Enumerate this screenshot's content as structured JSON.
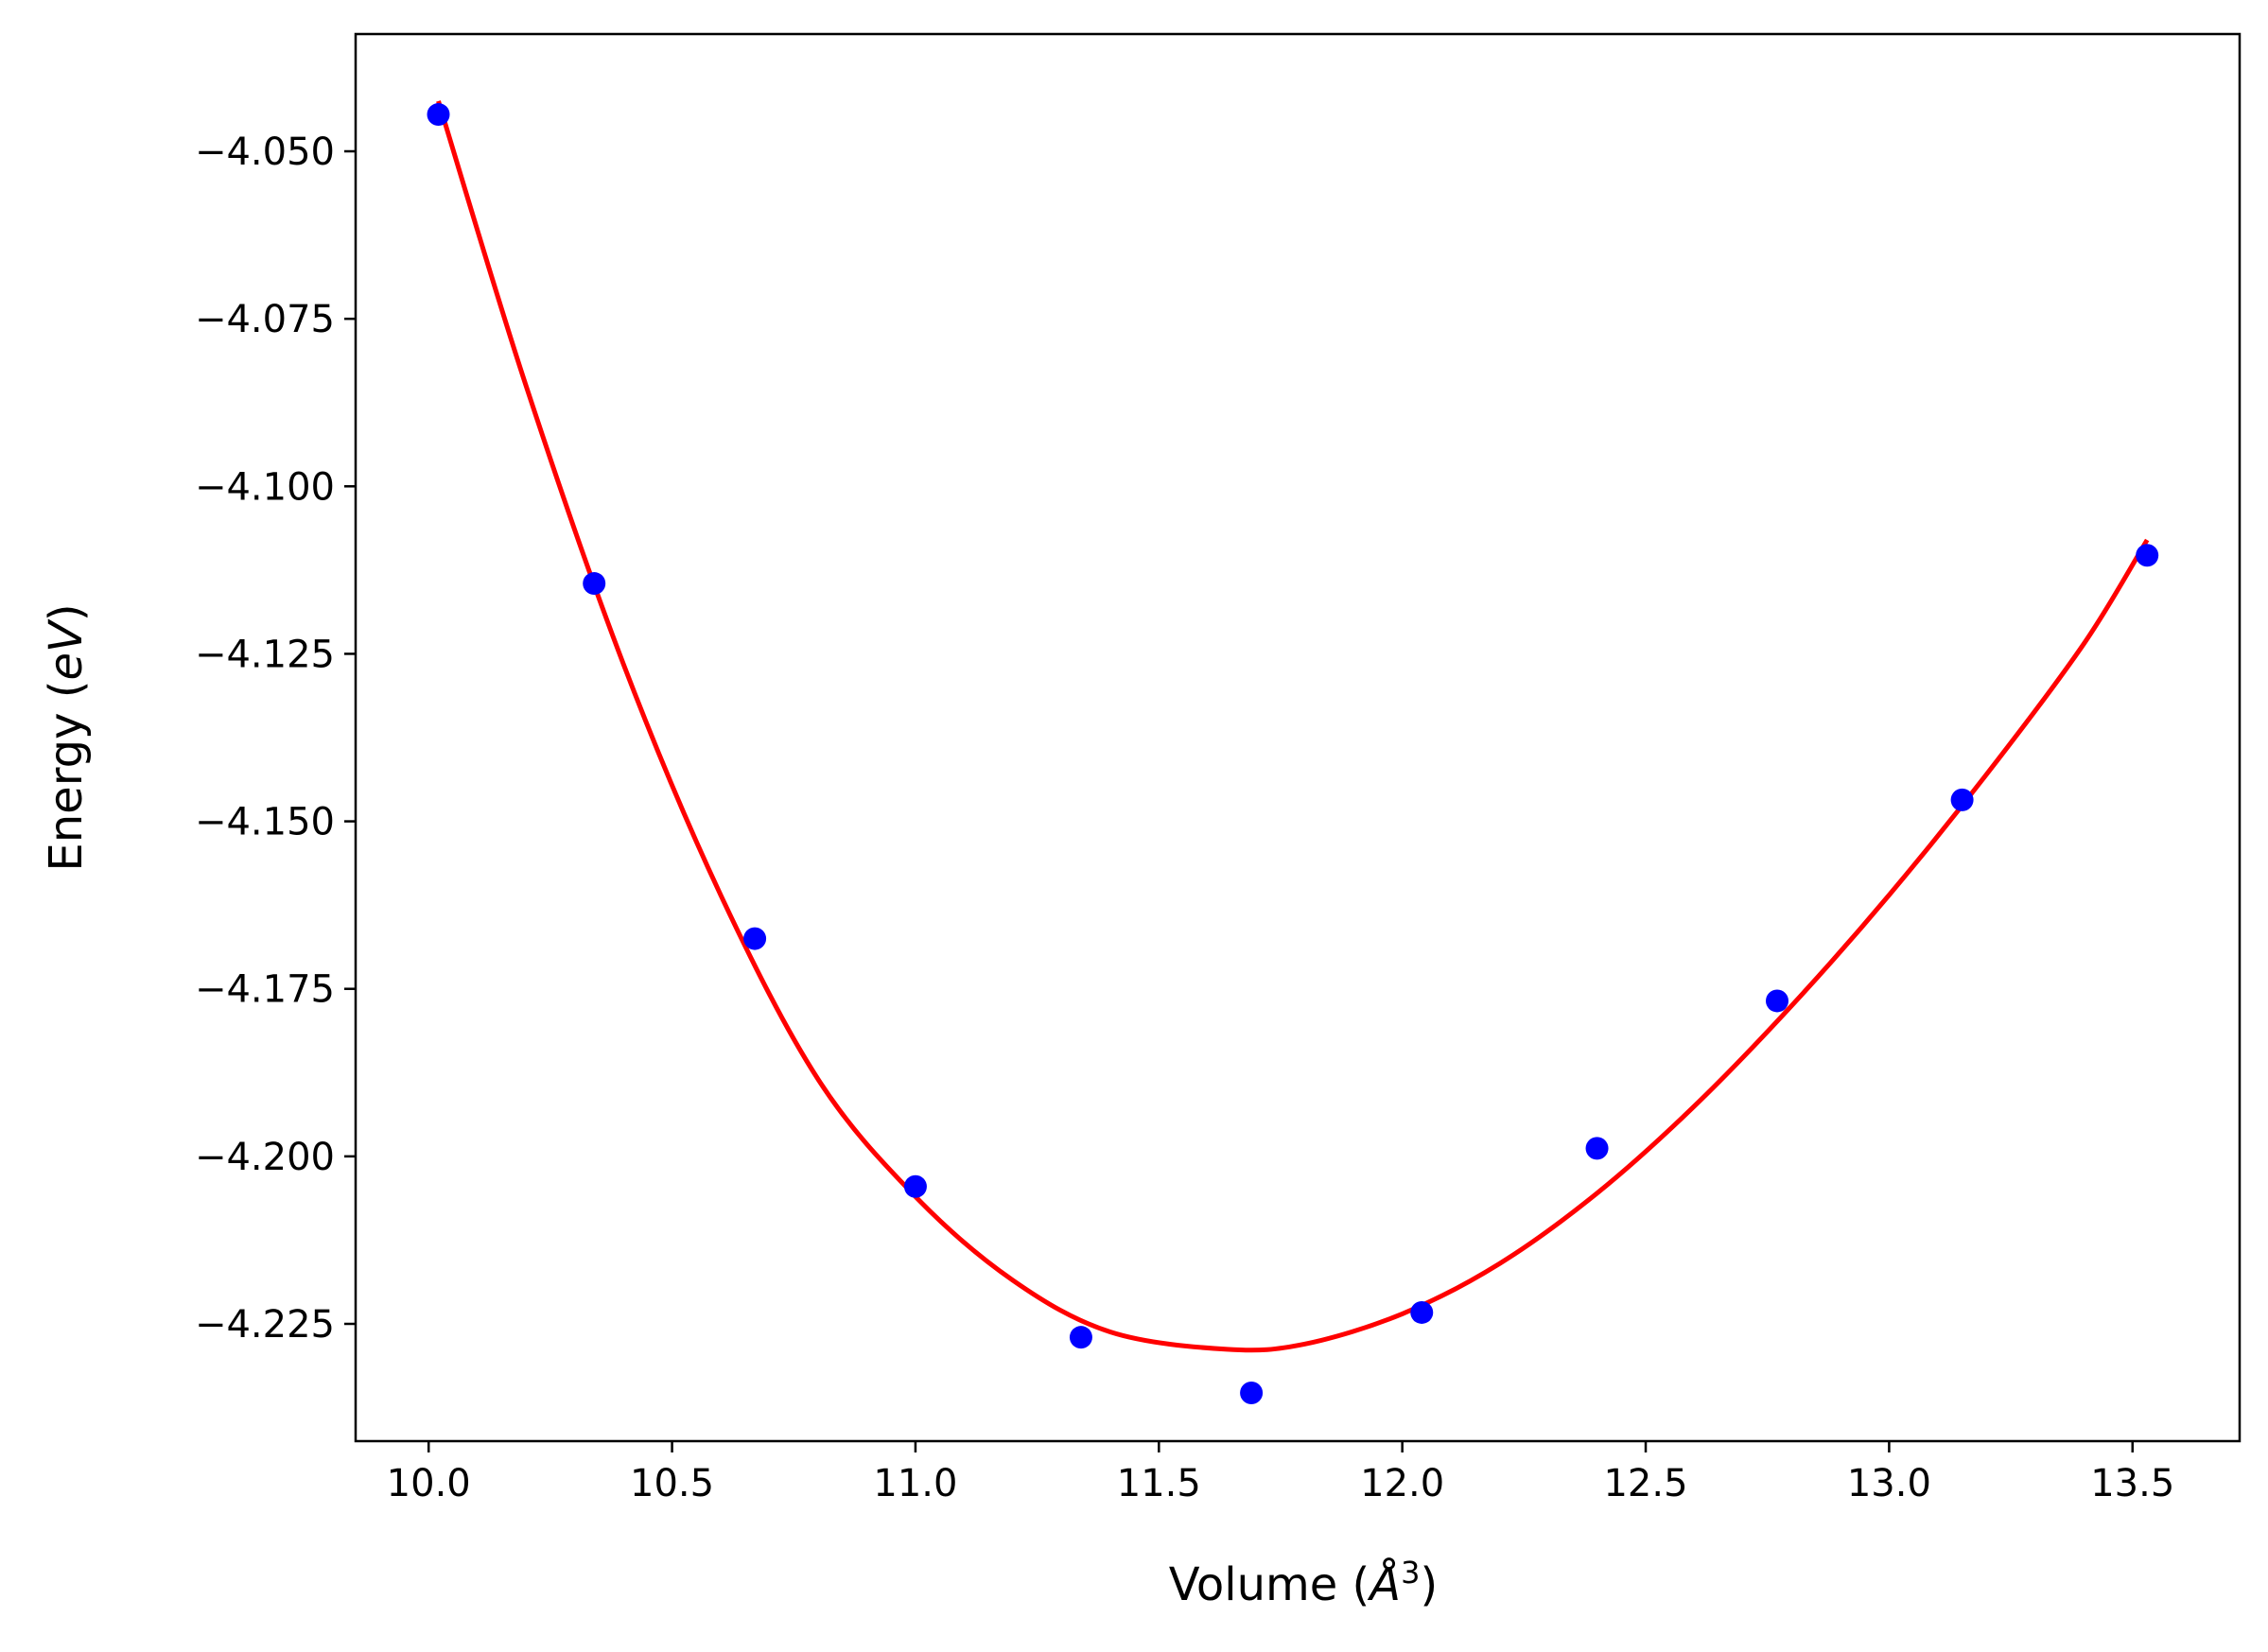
{
  "chart_data": {
    "type": "scatter",
    "title": "",
    "xlabel": {
      "prefix": "Volume (",
      "symbol": "Å",
      "exponent": "3",
      "suffix": ")"
    },
    "ylabel": {
      "prefix": "Energy (",
      "unit": "eV",
      "suffix": ")"
    },
    "xlim": [
      9.85,
      13.72
    ],
    "ylim": [
      -4.2425,
      -4.0325
    ],
    "xticks": [
      10.0,
      10.5,
      11.0,
      11.5,
      12.0,
      12.5,
      13.0,
      13.5
    ],
    "xtick_labels": [
      "10.0",
      "10.5",
      "11.0",
      "11.5",
      "12.0",
      "12.5",
      "13.0",
      "13.5"
    ],
    "yticks": [
      -4.05,
      -4.075,
      -4.1,
      -4.125,
      -4.15,
      -4.175,
      -4.2,
      -4.225
    ],
    "ytick_labels": [
      "−4.050",
      "−4.075",
      "−4.100",
      "−4.125",
      "−4.150",
      "−4.175",
      "−4.200",
      "−4.225"
    ],
    "grid": false,
    "series": [
      {
        "kind": "points",
        "color": "#0000ff",
        "x": [
          10.02,
          10.34,
          10.67,
          11.0,
          11.34,
          11.69,
          12.04,
          12.4,
          12.77,
          13.15,
          13.53
        ],
        "y": [
          -4.0445,
          -4.1145,
          -4.1675,
          -4.2045,
          -4.227,
          -4.2353,
          -4.2233,
          -4.1988,
          -4.1768,
          -4.1468,
          -4.1103
        ]
      },
      {
        "kind": "fit-line",
        "color": "#ff0000",
        "x": [
          10.02,
          10.2,
          10.4,
          10.6,
          10.8,
          11.0,
          11.2,
          11.4,
          11.64,
          11.8,
          12.0,
          12.2,
          12.4,
          12.6,
          12.8,
          13.0,
          13.2,
          13.4,
          13.53
        ],
        "y": [
          -4.0425,
          -4.085,
          -4.1265,
          -4.161,
          -4.1885,
          -4.206,
          -4.2185,
          -4.2262,
          -4.2288,
          -4.228,
          -4.2235,
          -4.216,
          -4.2055,
          -4.1925,
          -4.1775,
          -4.161,
          -4.143,
          -4.1235,
          -4.108
        ]
      }
    ]
  }
}
